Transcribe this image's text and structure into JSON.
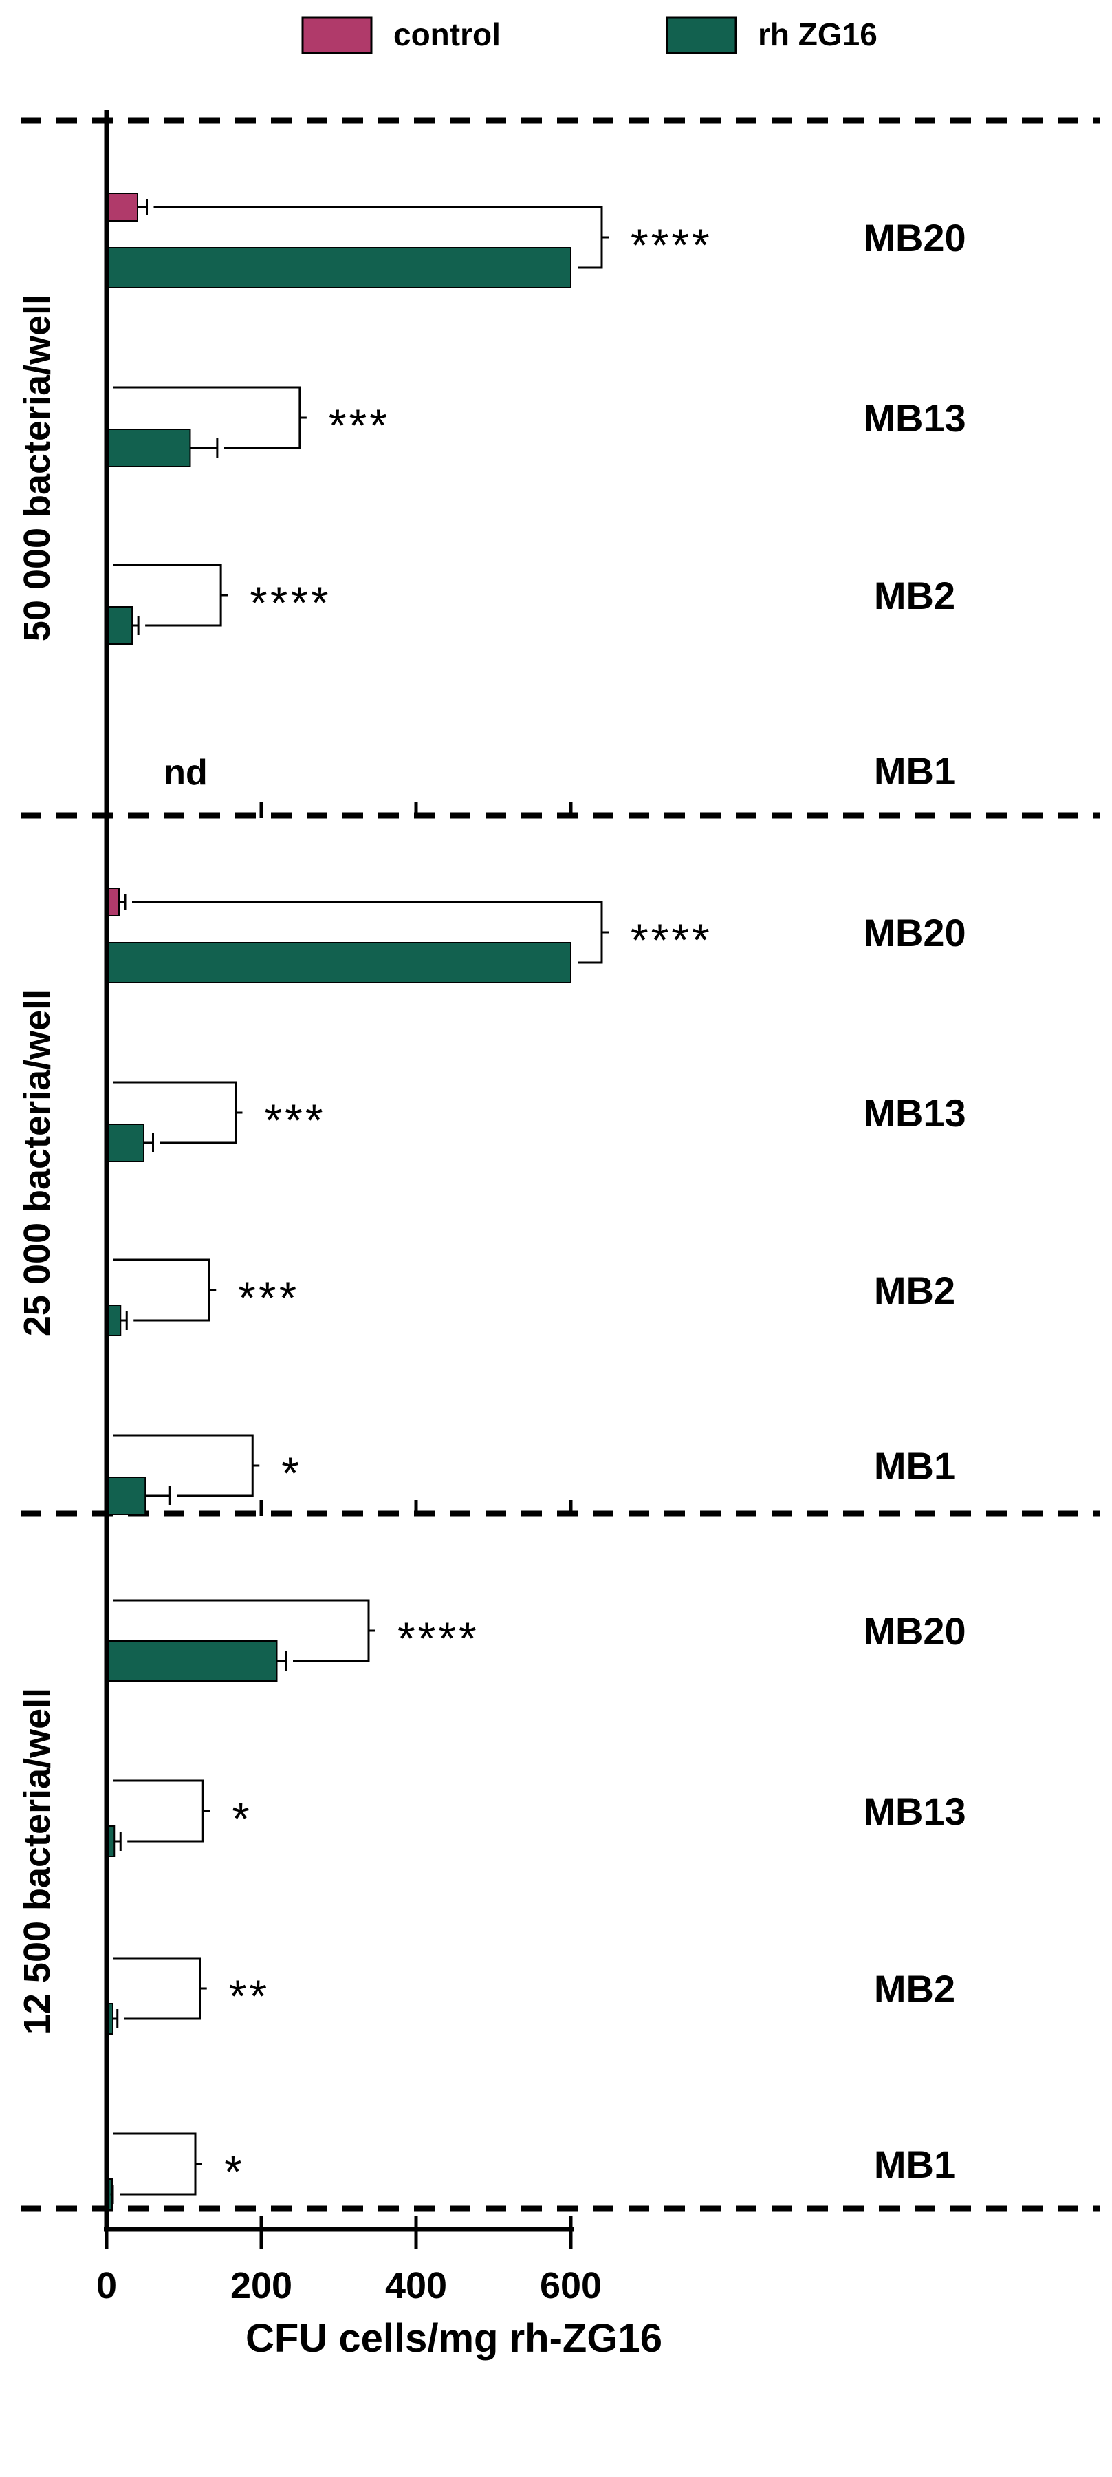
{
  "chart_data": {
    "type": "bar",
    "orientation": "horizontal",
    "xlabel": "CFU cells/mg rh-ZG16",
    "xlim": [
      0,
      600
    ],
    "xticks": [
      0,
      200,
      400,
      600
    ],
    "legend": {
      "position": "top",
      "entries": [
        {
          "name": "control",
          "color": "#b03a6a"
        },
        {
          "name": "rh ZG16",
          "color": "#12614f"
        }
      ]
    },
    "series": [
      {
        "name": "control",
        "color": "#b03a6a"
      },
      {
        "name": "rh ZG16",
        "color": "#12614f"
      }
    ],
    "panels": [
      {
        "label": "50 000 bacteria/well",
        "groups": [
          {
            "strain": "MB20",
            "control": 40,
            "control_err": 12,
            "rh": 600,
            "rh_err": 0,
            "sig": "****"
          },
          {
            "strain": "MB13",
            "control": 0,
            "control_err": 0,
            "rh": 108,
            "rh_err": 35,
            "sig": "***"
          },
          {
            "strain": "MB2",
            "control": 0,
            "control_err": 0,
            "rh": 33,
            "rh_err": 8,
            "sig": "****"
          },
          {
            "strain": "MB1",
            "control": 0,
            "control_err": 0,
            "rh": 0,
            "rh_err": 0,
            "sig": "",
            "note": "nd"
          }
        ]
      },
      {
        "label": "25 000 bacteria/well",
        "groups": [
          {
            "strain": "MB20",
            "control": 16,
            "control_err": 8,
            "rh": 600,
            "rh_err": 0,
            "sig": "****"
          },
          {
            "strain": "MB13",
            "control": 0,
            "control_err": 0,
            "rh": 48,
            "rh_err": 12,
            "sig": "***"
          },
          {
            "strain": "MB2",
            "control": 0,
            "control_err": 0,
            "rh": 18,
            "rh_err": 8,
            "sig": "***"
          },
          {
            "strain": "MB1",
            "control": 0,
            "control_err": 0,
            "rh": 50,
            "rh_err": 32,
            "sig": "*"
          }
        ]
      },
      {
        "label": "12 500 bacteria/well",
        "groups": [
          {
            "strain": "MB20",
            "control": 0,
            "control_err": 0,
            "rh": 220,
            "rh_err": 12,
            "sig": "****"
          },
          {
            "strain": "MB13",
            "control": 0,
            "control_err": 0,
            "rh": 10,
            "rh_err": 8,
            "sig": "*"
          },
          {
            "strain": "MB2",
            "control": 0,
            "control_err": 0,
            "rh": 8,
            "rh_err": 6,
            "sig": "**"
          },
          {
            "strain": "MB1",
            "control": 0,
            "control_err": 0,
            "rh": 5,
            "rh_err": 3,
            "sig": "*"
          }
        ]
      }
    ]
  }
}
